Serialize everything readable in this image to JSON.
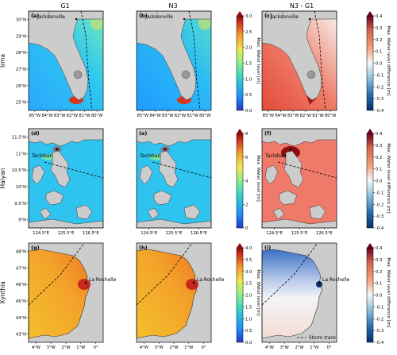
{
  "chart_data": {
    "type": "map",
    "columns": [
      "G1",
      "N3",
      "N3 - G1"
    ],
    "rows": [
      {
        "storm": "Irma",
        "panel_letters": [
          "(a)",
          "(b)",
          "(c)"
        ],
        "city_label": "Jacksonville",
        "x_ticks": [
          "85°W",
          "84°W",
          "83°W",
          "82°W",
          "81°W",
          "80°W"
        ],
        "y_ticks": [
          "30°N",
          "29°N",
          "28°N",
          "27°N",
          "26°N",
          "25°N"
        ],
        "level_ticks": [
          "0.0",
          "0.5",
          "1.0",
          "1.5",
          "2.0",
          "2.5",
          "3.0"
        ],
        "level_label": "Max. Water level [m]",
        "diff_ticks": [
          "0.4",
          "0.3",
          "0.2",
          "0.1",
          "0.0",
          "-0.1",
          "-0.2",
          "-0.3",
          "-0.4"
        ],
        "diff_label": "Max. Water level difference [m]",
        "sea_value_g1": 0.8,
        "sea_value_n3": 0.9,
        "diff_sea_value": 0.3
      },
      {
        "storm": "Haiyan",
        "panel_letters": [
          "(d)",
          "(e)",
          "(f)"
        ],
        "city_label": "Tacloban",
        "x_ticks": [
          "124.5°E",
          "125.5°E",
          "126.5°E"
        ],
        "y_ticks": [
          "11.5°N",
          "11°N",
          "10.5°N",
          "10°N",
          "9.5°N",
          "9°N"
        ],
        "level_ticks": [
          "0",
          "2",
          "4",
          "6",
          "8"
        ],
        "level_label": "Max. Water level [m]",
        "diff_ticks": [
          "0.4",
          "0.3",
          "0.2",
          "0.1",
          "0.0",
          "-0.1",
          "-0.2",
          "-0.3",
          "-0.4"
        ],
        "diff_label": "Max. Water level difference [m]",
        "sea_value_g1": 1.2,
        "sea_value_n3": 1.3,
        "diff_sea_value": 0.18
      },
      {
        "storm": "Xynthia",
        "panel_letters": [
          "(g)",
          "(h)",
          "(i)"
        ],
        "city_label": "La Rochelle",
        "x_ticks": [
          "4°W",
          "3°W",
          "2°W",
          "1°W",
          "0°"
        ],
        "y_ticks": [
          "48°N",
          "47°N",
          "46°N",
          "45°N",
          "44°N",
          "43°N"
        ],
        "level_ticks": [
          "0.0",
          "0.5",
          "1.0",
          "1.5",
          "2.0",
          "2.5",
          "3.0",
          "3.5",
          "4.0"
        ],
        "level_label": "Max. Water level [m]",
        "diff_ticks": [
          "0.4",
          "0.3",
          "0.2",
          "0.1",
          "0.0",
          "-0.1",
          "-0.2",
          "-0.3",
          "-0.4"
        ],
        "diff_label": "Max. Water level difference [m]",
        "sea_value_g1": 3.0,
        "sea_value_n3": 3.0,
        "diff_sea_value": -0.05
      }
    ],
    "legend": {
      "storm_track_label": "Storm track",
      "location": "bottom-right"
    }
  }
}
